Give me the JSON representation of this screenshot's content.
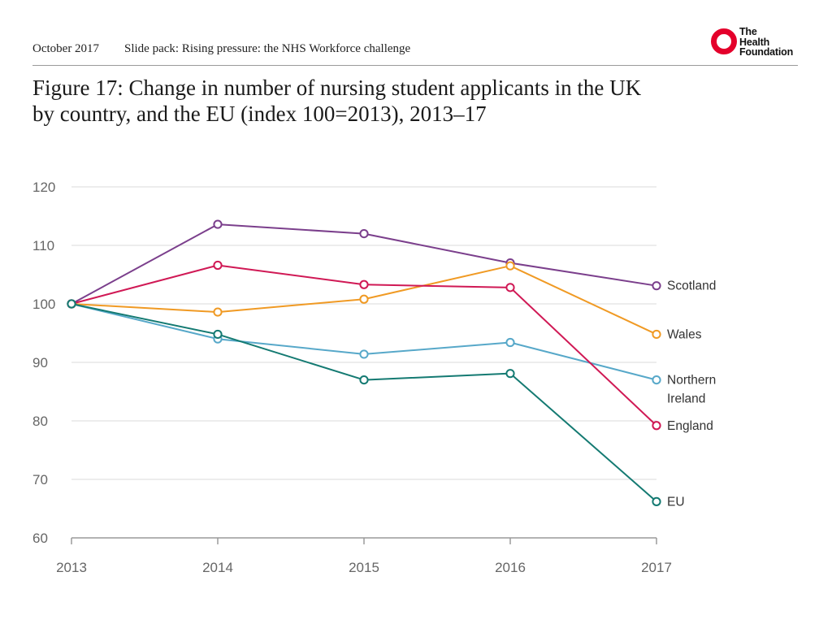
{
  "header": {
    "date": "October 2017",
    "slide_pack": "Slide pack: Rising pressure: the NHS Workforce challenge",
    "logo_lines": [
      "The",
      "Health",
      "Foundation"
    ],
    "logo_color": "#e4002b"
  },
  "figure": {
    "title_line1": "Figure 17: Change in number of nursing student applicants in the UK",
    "title_line2": "by country, and the EU (index 100=2013), 2013–17"
  },
  "chart_data": {
    "type": "line",
    "title": "Figure 17: Change in number of nursing student applicants in the UK by country, and the EU (index 100=2013), 2013–17",
    "xlabel": "",
    "ylabel": "",
    "x": [
      "2013",
      "2014",
      "2015",
      "2016",
      "2017"
    ],
    "ylim": [
      60,
      120
    ],
    "yticks": [
      60,
      70,
      80,
      90,
      100,
      110,
      120
    ],
    "grid": true,
    "legend": "direct labels at right end of lines",
    "series": [
      {
        "name": "Scotland",
        "label_lines": [
          "Scotland"
        ],
        "color": "#7b3f8c",
        "values": [
          100,
          113.6,
          112,
          107,
          103.1
        ]
      },
      {
        "name": "Wales",
        "label_lines": [
          "Wales"
        ],
        "color": "#f09a24",
        "values": [
          100,
          98.6,
          100.8,
          106.5,
          94.8
        ]
      },
      {
        "name": "Northern Ireland",
        "label_lines": [
          "Northern",
          "Ireland"
        ],
        "color": "#57a8c9",
        "values": [
          100,
          94,
          91.4,
          93.4,
          87
        ]
      },
      {
        "name": "England",
        "label_lines": [
          "England"
        ],
        "color": "#d01955",
        "values": [
          100,
          106.6,
          103.3,
          102.8,
          79.2
        ]
      },
      {
        "name": "EU",
        "label_lines": [
          "EU"
        ],
        "color": "#147a72",
        "values": [
          100,
          94.8,
          87,
          88.1,
          66.2
        ]
      }
    ]
  }
}
